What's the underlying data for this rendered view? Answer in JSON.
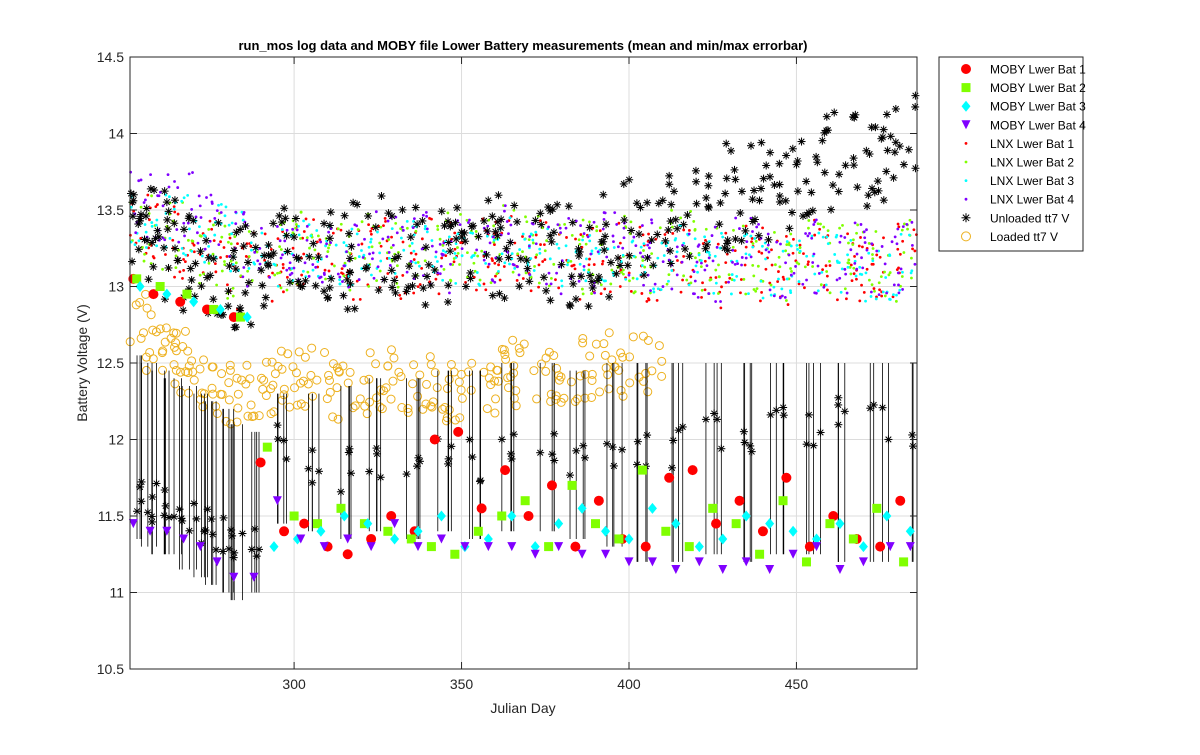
{
  "chart_data": {
    "type": "scatter",
    "title": "run_mos log data and MOBY file Lower Battery measurements (mean and min/max errorbar)",
    "xlabel": "Julian Day",
    "ylabel": "Battery Voltage (V)",
    "xlim": [
      251,
      486
    ],
    "ylim": [
      10.5,
      14.5
    ],
    "xticks": [
      300,
      350,
      400,
      450
    ],
    "yticks": [
      10.5,
      11,
      11.5,
      12,
      12.5,
      13,
      13.5,
      14,
      14.5
    ],
    "xtick_labels": [
      "300",
      "350",
      "400",
      "450"
    ],
    "ytick_labels": [
      "10.5",
      "11",
      "11.5",
      "12",
      "12.5",
      "13",
      "13.5",
      "14",
      "14.5"
    ],
    "grid": true,
    "legend_position": "outside top-right",
    "series": [
      {
        "name": "MOBY Lwer Bat 1",
        "marker": "circle",
        "color": "#ff0000",
        "x": [
          252,
          258,
          266,
          274,
          282,
          290,
          297,
          303,
          310,
          316,
          323,
          329,
          336,
          342,
          349,
          356,
          363,
          370,
          377,
          384,
          391,
          398,
          405,
          412,
          419,
          426,
          433,
          440,
          447,
          454,
          461,
          468,
          475,
          481
        ],
        "y": [
          13.05,
          12.95,
          12.9,
          12.85,
          12.8,
          11.85,
          11.4,
          11.45,
          11.3,
          11.25,
          11.35,
          11.5,
          11.4,
          12.0,
          12.05,
          11.55,
          11.8,
          11.5,
          11.7,
          11.3,
          11.6,
          11.35,
          11.3,
          11.75,
          11.8,
          11.45,
          11.6,
          11.4,
          11.75,
          11.3,
          11.5,
          11.35,
          11.3,
          11.6
        ],
        "errorbars": false
      },
      {
        "name": "MOBY Lwer Bat 2",
        "marker": "square",
        "color": "#80ff00",
        "x": [
          253,
          260,
          268,
          276,
          284,
          292,
          300,
          307,
          314,
          321,
          328,
          335,
          341,
          348,
          355,
          362,
          369,
          376,
          383,
          390,
          397,
          404,
          411,
          418,
          425,
          432,
          439,
          446,
          453,
          460,
          467,
          474,
          482
        ],
        "y": [
          13.05,
          13.0,
          12.95,
          12.85,
          12.8,
          11.95,
          11.5,
          11.45,
          11.55,
          11.45,
          11.4,
          11.35,
          11.3,
          11.25,
          11.4,
          11.5,
          11.6,
          11.3,
          11.7,
          11.45,
          11.35,
          11.8,
          11.4,
          11.3,
          11.55,
          11.45,
          11.25,
          11.6,
          11.2,
          11.45,
          11.35,
          11.55,
          11.2
        ],
        "errorbars": false
      },
      {
        "name": "MOBY Lwer Bat 3",
        "marker": "diamond",
        "color": "#00ffff",
        "x": [
          254,
          262,
          270,
          278,
          286,
          294,
          301,
          308,
          315,
          322,
          330,
          337,
          344,
          351,
          358,
          365,
          372,
          379,
          386,
          393,
          400,
          407,
          414,
          421,
          428,
          435,
          442,
          449,
          456,
          463,
          470,
          477,
          484
        ],
        "y": [
          13.0,
          12.95,
          12.9,
          12.85,
          12.8,
          11.3,
          11.35,
          11.4,
          11.5,
          11.45,
          11.35,
          11.4,
          11.5,
          11.3,
          11.35,
          11.5,
          11.3,
          11.45,
          11.55,
          11.4,
          11.35,
          11.55,
          11.45,
          11.3,
          11.35,
          11.5,
          11.45,
          11.4,
          11.35,
          11.45,
          11.3,
          11.5,
          11.4
        ],
        "errorbars": false
      },
      {
        "name": "MOBY Lwer Bat 4",
        "marker": "triangle-down",
        "color": "#8000ff",
        "x": [
          252,
          257,
          262,
          267,
          272,
          277,
          282,
          288,
          295,
          302,
          309,
          316,
          323,
          330,
          337,
          344,
          351,
          358,
          365,
          372,
          379,
          386,
          393,
          400,
          407,
          414,
          421,
          428,
          435,
          442,
          449,
          456,
          463,
          470,
          478,
          484
        ],
        "y": [
          11.45,
          11.4,
          11.4,
          11.35,
          11.3,
          11.2,
          11.1,
          11.1,
          11.6,
          11.35,
          11.3,
          11.35,
          11.3,
          11.45,
          11.3,
          11.35,
          11.3,
          11.3,
          11.3,
          11.25,
          11.3,
          11.25,
          11.25,
          11.2,
          11.2,
          11.15,
          11.2,
          11.15,
          11.2,
          11.15,
          11.25,
          11.3,
          11.15,
          11.2,
          11.3,
          11.3
        ],
        "errorbars": false
      },
      {
        "name": "LNX Lwer Bat 1",
        "marker": "dot",
        "color": "#ff0000",
        "x": [
          255,
          265,
          275,
          285,
          295,
          305,
          315,
          325,
          335,
          345,
          355,
          365,
          375,
          385,
          395,
          405,
          415,
          425,
          435,
          445,
          455,
          465,
          475,
          485
        ],
        "y": [
          13.35,
          13.3,
          13.2,
          13.1,
          13.15,
          13.2,
          13.15,
          13.2,
          13.15,
          13.2,
          13.2,
          13.25,
          13.2,
          13.15,
          13.2,
          13.15,
          13.2,
          13.1,
          13.15,
          13.1,
          13.2,
          13.15,
          13.1,
          13.2
        ],
        "spread": 0.25
      },
      {
        "name": "LNX Lwer Bat 2",
        "marker": "dot",
        "color": "#80ff00",
        "x": [
          255,
          265,
          275,
          285,
          295,
          305,
          315,
          325,
          335,
          345,
          355,
          365,
          375,
          385,
          395,
          405,
          415,
          425,
          435,
          445,
          455,
          465,
          475,
          485
        ],
        "y": [
          13.4,
          13.35,
          13.25,
          13.15,
          13.2,
          13.25,
          13.2,
          13.25,
          13.2,
          13.25,
          13.25,
          13.3,
          13.25,
          13.2,
          13.25,
          13.2,
          13.25,
          13.15,
          13.2,
          13.15,
          13.25,
          13.2,
          13.15,
          13.25
        ],
        "spread": 0.25
      },
      {
        "name": "LNX Lwer Bat 3",
        "marker": "dot",
        "color": "#00ffff",
        "x": [
          255,
          265,
          275,
          285,
          295,
          305,
          315,
          325,
          335,
          345,
          355,
          365,
          375,
          385,
          395,
          405,
          415,
          425,
          435,
          445,
          455,
          465,
          475,
          485
        ],
        "y": [
          13.45,
          13.4,
          13.35,
          13.3,
          13.2,
          13.25,
          13.2,
          13.2,
          13.25,
          13.2,
          13.2,
          13.25,
          13.2,
          13.15,
          13.2,
          13.15,
          13.2,
          13.15,
          13.15,
          13.1,
          13.15,
          13.15,
          13.1,
          13.15
        ],
        "spread": 0.2
      },
      {
        "name": "LNX Lwer Bat 4",
        "marker": "dot",
        "color": "#8000ff",
        "x": [
          255,
          265,
          275,
          285,
          295,
          305,
          315,
          325,
          335,
          345,
          355,
          365,
          375,
          385,
          395,
          405,
          415,
          425,
          435,
          445,
          455,
          465,
          475,
          485
        ],
        "y": [
          13.55,
          13.5,
          13.35,
          13.25,
          13.2,
          13.25,
          13.2,
          13.25,
          13.25,
          13.2,
          13.25,
          13.3,
          13.2,
          13.2,
          13.25,
          13.2,
          13.2,
          13.15,
          13.2,
          13.15,
          13.2,
          13.2,
          13.15,
          13.2
        ],
        "spread": 0.25
      },
      {
        "name": "Unloaded tt7 V",
        "marker": "asterisk",
        "color": "#000000",
        "x": [
          252,
          255,
          258,
          262,
          266,
          270,
          274,
          278,
          282,
          286,
          290,
          295,
          300,
          305,
          310,
          315,
          320,
          325,
          330,
          335,
          340,
          345,
          350,
          355,
          360,
          365,
          370,
          375,
          380,
          385,
          390,
          395,
          400,
          405,
          410,
          415,
          420,
          425,
          430,
          435,
          440,
          445,
          450,
          455,
          460,
          465,
          470,
          475,
          480,
          485
        ],
        "y": [
          13.4,
          13.35,
          13.3,
          13.25,
          13.2,
          13.15,
          13.1,
          13.05,
          13.05,
          13.1,
          13.15,
          13.2,
          13.2,
          13.25,
          13.2,
          13.25,
          13.2,
          13.25,
          13.3,
          13.2,
          13.25,
          13.2,
          13.2,
          13.25,
          13.3,
          13.25,
          13.2,
          13.25,
          13.2,
          13.2,
          13.25,
          13.3,
          13.35,
          13.4,
          13.4,
          13.45,
          13.5,
          13.55,
          13.6,
          13.6,
          13.65,
          13.7,
          13.75,
          13.8,
          13.8,
          13.85,
          13.85,
          13.9,
          13.9,
          13.95
        ],
        "spread": 0.35,
        "lower_band": {
          "x": [
            252,
            256,
            260,
            264,
            268,
            272,
            276,
            280,
            284,
            288,
            295,
            305,
            315,
            325,
            335,
            345,
            355,
            365,
            375,
            385,
            395,
            405,
            415,
            425,
            435,
            445,
            455,
            465,
            475,
            485
          ],
          "y": [
            11.65,
            11.6,
            11.55,
            11.55,
            11.5,
            11.45,
            11.4,
            11.35,
            11.3,
            11.3,
            11.95,
            11.85,
            11.8,
            11.9,
            11.85,
            11.9,
            11.85,
            11.9,
            11.9,
            11.85,
            11.95,
            11.9,
            11.95,
            12.05,
            12.0,
            12.1,
            12.1,
            12.15,
            12.1,
            12.1
          ],
          "min": [
            11.35,
            11.3,
            11.25,
            11.25,
            11.15,
            11.1,
            11.05,
            11.0,
            10.95,
            11.0,
            11.45,
            11.4,
            11.35,
            11.4,
            11.35,
            11.4,
            11.35,
            11.4,
            11.4,
            11.35,
            11.3,
            11.2,
            11.2,
            11.25,
            11.2,
            11.25,
            11.25,
            11.2,
            11.2,
            11.2
          ],
          "max": [
            12.55,
            12.5,
            12.45,
            12.4,
            12.35,
            12.3,
            12.25,
            12.2,
            12.1,
            12.05,
            12.3,
            12.3,
            12.35,
            12.4,
            12.4,
            12.45,
            12.45,
            12.5,
            12.5,
            12.45,
            12.5,
            12.5,
            12.5,
            12.5,
            12.5,
            12.5,
            12.5,
            12.5,
            12.5,
            12.5
          ]
        }
      },
      {
        "name": "Loaded tt7 V",
        "marker": "circle-open",
        "color": "#edb120",
        "x": [
          252,
          256,
          260,
          264,
          268,
          272,
          276,
          280,
          284,
          288,
          292,
          296,
          300,
          305,
          310,
          315,
          320,
          325,
          330,
          335,
          340,
          345,
          350,
          355,
          360,
          365,
          370,
          375,
          380,
          385,
          390,
          395,
          400,
          405
        ],
        "y": [
          12.75,
          12.7,
          12.6,
          12.55,
          12.45,
          12.4,
          12.35,
          12.3,
          12.3,
          12.25,
          12.3,
          12.35,
          12.4,
          12.4,
          12.35,
          12.3,
          12.35,
          12.4,
          12.35,
          12.3,
          12.35,
          12.3,
          12.3,
          12.35,
          12.4,
          12.45,
          12.4,
          12.35,
          12.4,
          12.45,
          12.5,
          12.45,
          12.55,
          12.5
        ],
        "spread": 0.2
      }
    ]
  }
}
